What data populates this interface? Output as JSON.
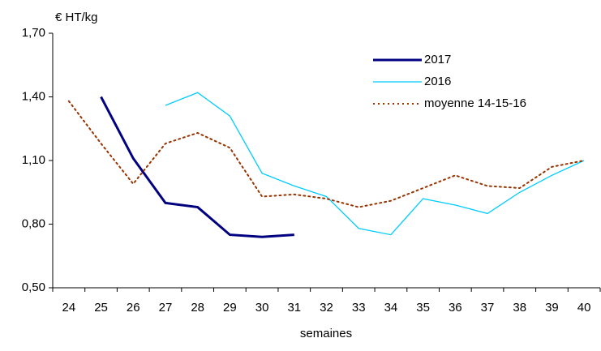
{
  "chart_data": {
    "type": "line",
    "y_label": "€  HT/kg",
    "x_label": "semaines",
    "categories": [
      "24",
      "25",
      "26",
      "27",
      "28",
      "29",
      "30",
      "31",
      "32",
      "33",
      "34",
      "35",
      "36",
      "37",
      "38",
      "39",
      "40"
    ],
    "series": [
      {
        "name": "2017",
        "color": "#000080",
        "style": "solid",
        "width": 3,
        "values": [
          null,
          1.4,
          1.11,
          0.9,
          0.88,
          0.75,
          0.74,
          0.75,
          null,
          null,
          null,
          null,
          null,
          null,
          null,
          null,
          null
        ]
      },
      {
        "name": "2016",
        "color": "#00ccff",
        "style": "solid",
        "width": 1.3,
        "values": [
          null,
          null,
          null,
          1.36,
          1.42,
          1.31,
          1.04,
          0.98,
          0.93,
          0.78,
          0.75,
          0.92,
          0.89,
          0.85,
          0.95,
          1.03,
          1.1
        ]
      },
      {
        "name": "moyenne 14-15-16",
        "color": "#993300",
        "style": "dotted",
        "width": 2,
        "values": [
          1.38,
          1.18,
          0.99,
          1.18,
          1.23,
          1.16,
          0.93,
          0.94,
          0.92,
          0.88,
          0.91,
          0.97,
          1.03,
          0.98,
          0.97,
          1.07,
          1.1
        ]
      }
    ],
    "ylim": [
      0.5,
      1.7
    ],
    "yticks": [
      {
        "value": 0.5,
        "label": "0,50"
      },
      {
        "value": 0.8,
        "label": "0,80"
      },
      {
        "value": 1.1,
        "label": "1,10"
      },
      {
        "value": 1.4,
        "label": "1,40"
      },
      {
        "value": 1.7,
        "label": "1,70"
      }
    ],
    "grid": false,
    "legend": "top-right"
  }
}
